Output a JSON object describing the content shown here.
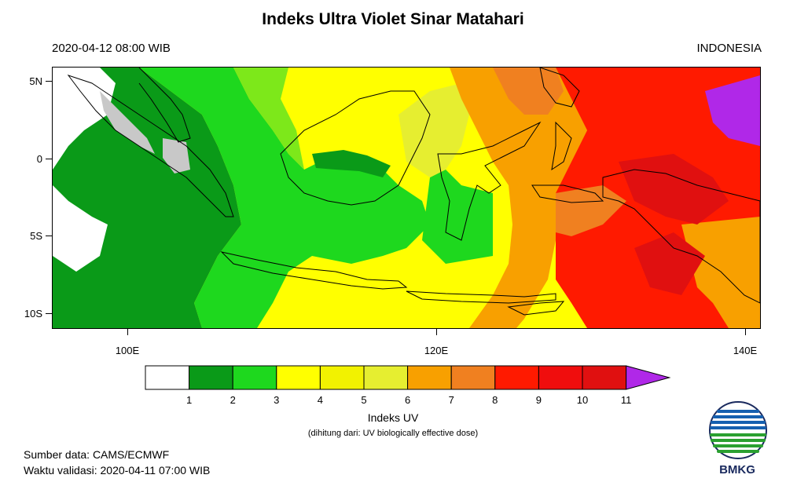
{
  "header": {
    "title": "Indeks Ultra Violet Sinar Matahari",
    "datetime": "2020-04-12  08:00 WIB",
    "region": "INDONESIA"
  },
  "map": {
    "lat_labels": [
      "5N",
      "0",
      "5S",
      "10S"
    ],
    "lon_labels": [
      "100E",
      "120E",
      "140E"
    ],
    "lon_range": [
      95,
      141
    ],
    "lat_range": [
      6,
      -11
    ],
    "colors": {
      "white": "#ffffff",
      "dkgreen": "#0a9a18",
      "green": "#1ed81e",
      "ltgreen": "#7de81a",
      "yellow": "#ffff00",
      "ltyellow": "#f2f230",
      "orange": "#f8a000",
      "dkorange": "#f07818",
      "red": "#ff1a00",
      "dkred": "#e01010",
      "purple": "#b028e8",
      "cloud": "#c8c8c8"
    }
  },
  "colorbar": {
    "levels": [
      "1",
      "2",
      "3",
      "4",
      "5",
      "6",
      "7",
      "8",
      "9",
      "10",
      "11"
    ],
    "colors": [
      "#ffffff",
      "#0a9a18",
      "#1ed81e",
      "#ffff00",
      "#f2f200",
      "#e6ee30",
      "#f8a000",
      "#f08020",
      "#ff1a00",
      "#f00d0d",
      "#e01010",
      "#b028e8"
    ],
    "title": "Indeks UV",
    "subtitle": "(dihitung dari: UV biologically effective dose)"
  },
  "footer": {
    "source": "Sumber data: CAMS/ECMWF",
    "validity": "Waktu validasi: 2020-04-11 07:00 WIB"
  },
  "logo": {
    "text": "BMKG",
    "icon": "bmkg-logo-icon"
  }
}
